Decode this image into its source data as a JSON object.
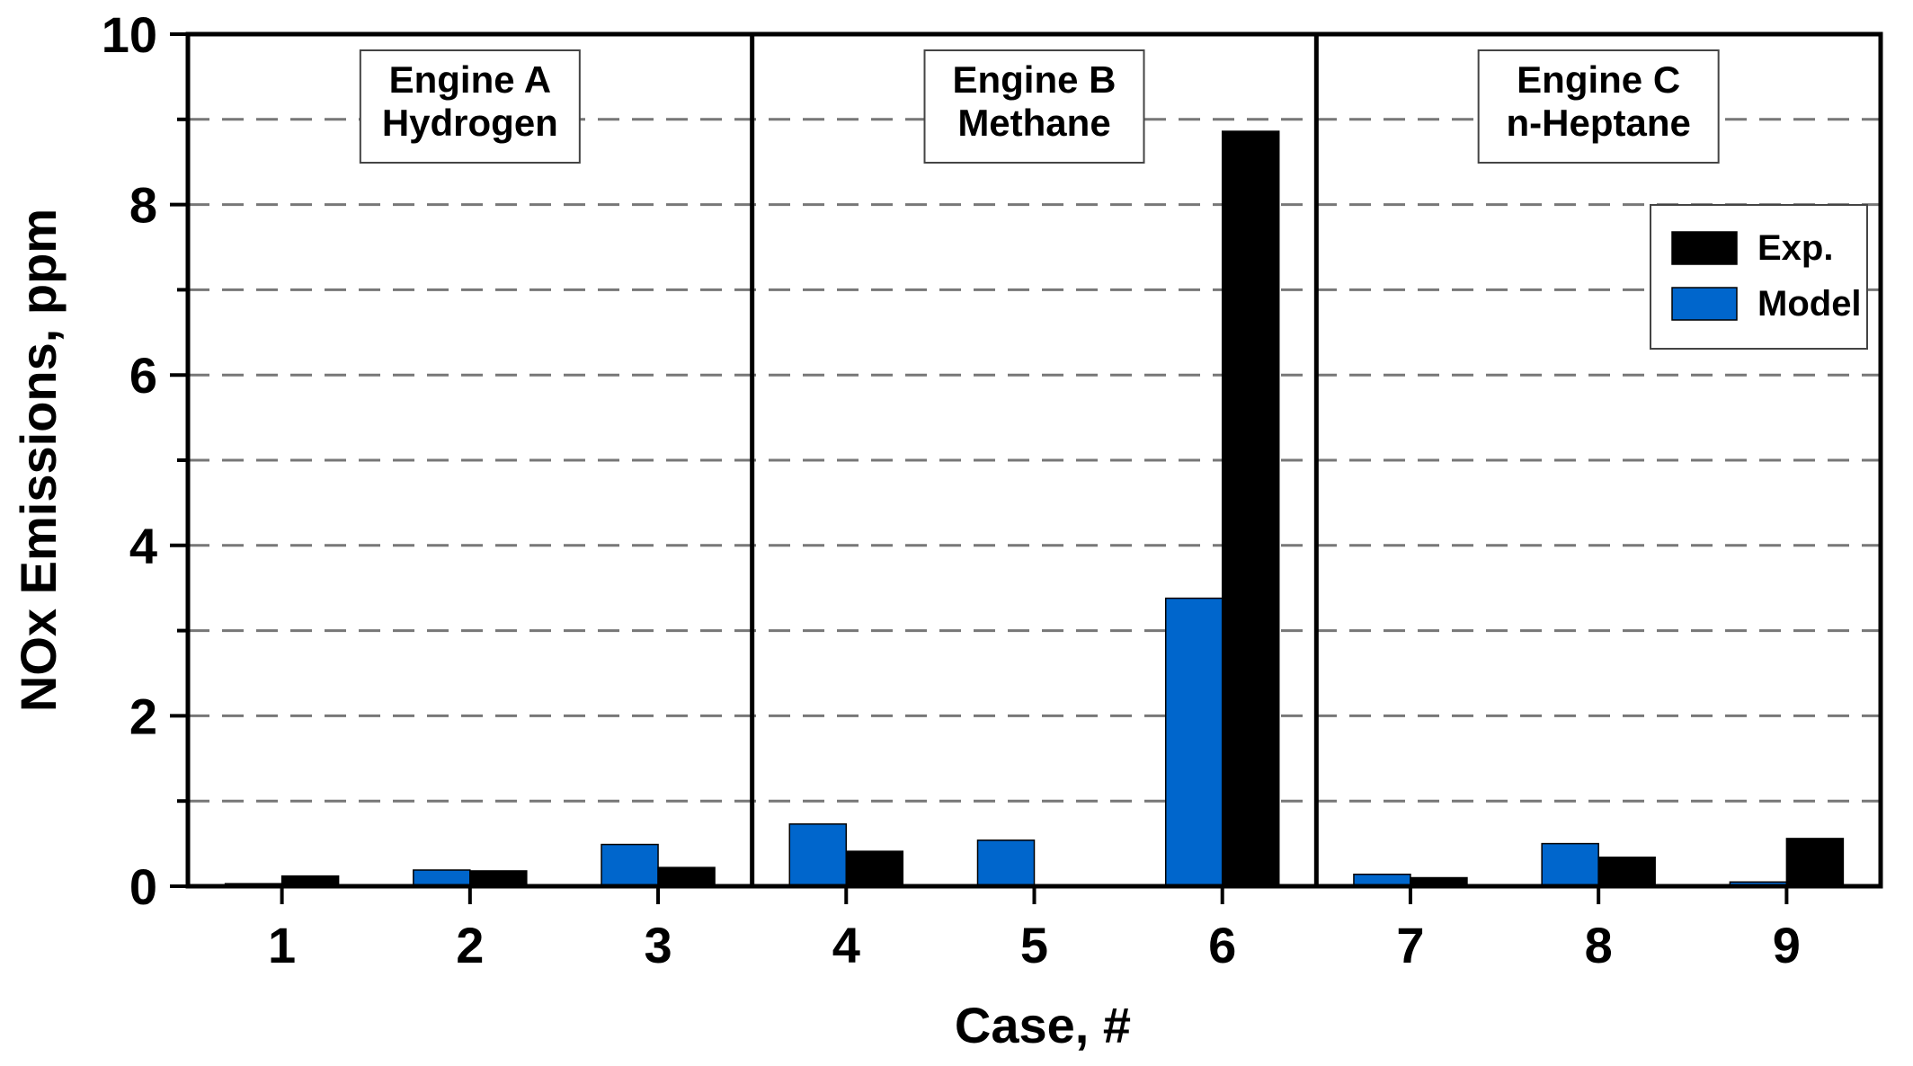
{
  "chart_data": {
    "type": "bar",
    "categories": [
      "1",
      "2",
      "3",
      "4",
      "5",
      "6",
      "7",
      "8",
      "9"
    ],
    "series": [
      {
        "name": "Model",
        "color": "#0066cc",
        "values": [
          0.03,
          0.19,
          0.49,
          0.73,
          0.54,
          3.38,
          0.14,
          0.5,
          0.05
        ]
      },
      {
        "name": "Exp.",
        "color": "#000000",
        "values": [
          0.12,
          0.18,
          0.22,
          0.41,
          0.0,
          8.86,
          0.1,
          0.34,
          0.56
        ]
      }
    ],
    "xlabel": "Case, #",
    "ylabel": "NOx Emissions, ppm",
    "ylim": [
      0,
      10
    ],
    "yticks": [
      0,
      2,
      4,
      6,
      8,
      10
    ],
    "grid": "horizontal dashed every 1",
    "legend": {
      "placement": "top-right",
      "entries": [
        {
          "label": "Exp.",
          "color": "#000000"
        },
        {
          "label": "Model",
          "color": "#0066cc"
        }
      ]
    },
    "groups": [
      {
        "line1": "Engine A",
        "line2": "Hydrogen",
        "cases": [
          "1",
          "2",
          "3"
        ]
      },
      {
        "line1": "Engine B",
        "line2": "Methane",
        "cases": [
          "4",
          "5",
          "6"
        ]
      },
      {
        "line1": "Engine C",
        "line2": "n-Heptane",
        "cases": [
          "7",
          "8",
          "9"
        ]
      }
    ]
  }
}
